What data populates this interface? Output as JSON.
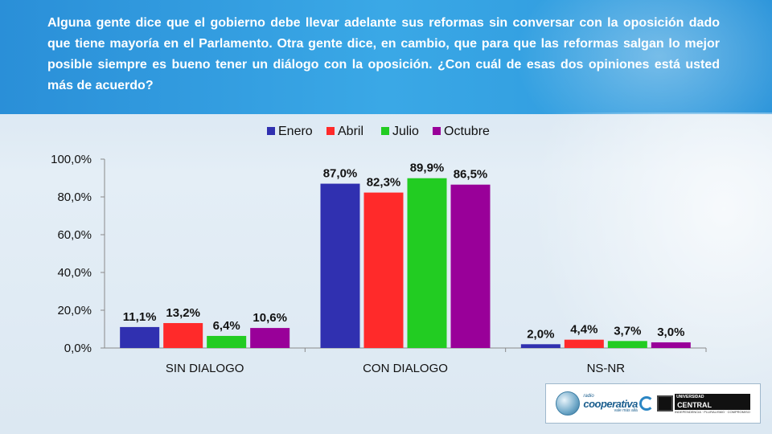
{
  "question": "Alguna gente dice que el gobierno debe llevar adelante sus reformas sin conversar con la oposición dado que tiene mayoría en el Parlamento.   Otra gente dice, en cambio, que para que las reformas salgan lo mejor posible siempre es bueno tener un diálogo con la oposición. ¿Con cuál de esas dos opiniones está usted más de acuerdo?",
  "logos": {
    "cooperativa_small": "radio",
    "cooperativa_name": "cooperativa",
    "cooperativa_tag": "vale más allá",
    "uc_top": "UNIVERSIDAD",
    "uc_name": "CENTRAL",
    "uc_sub": "INDEPENDENCIA · PLURALISMO · COMPROMISO"
  },
  "chart_data": {
    "type": "bar",
    "title": "",
    "xlabel": "",
    "ylabel": "",
    "categories": [
      "SIN DIALOGO",
      "CON DIALOGO",
      "NS-NR"
    ],
    "ylim": [
      0,
      100
    ],
    "yticks": [
      "0,0%",
      "20,0%",
      "40,0%",
      "60,0%",
      "80,0%",
      "100,0%"
    ],
    "legend_position": "top",
    "grid": false,
    "series": [
      {
        "name": "Enero",
        "color": "#3030b0",
        "values": [
          11.1,
          87.0,
          2.0
        ],
        "labels": [
          "11,1%",
          "87,0%",
          "2,0%"
        ]
      },
      {
        "name": "Abril",
        "color": "#ff2a2a",
        "values": [
          13.2,
          82.3,
          4.4
        ],
        "labels": [
          "13,2%",
          "82,3%",
          "4,4%"
        ]
      },
      {
        "name": "Julio",
        "color": "#22cc22",
        "values": [
          6.4,
          89.9,
          3.7
        ],
        "labels": [
          "6,4%",
          "89,9%",
          "3,7%"
        ]
      },
      {
        "name": "Octubre",
        "color": "#990099",
        "values": [
          10.6,
          86.5,
          3.0
        ],
        "labels": [
          "10,6%",
          "86,5%",
          "3,0%"
        ]
      }
    ]
  }
}
